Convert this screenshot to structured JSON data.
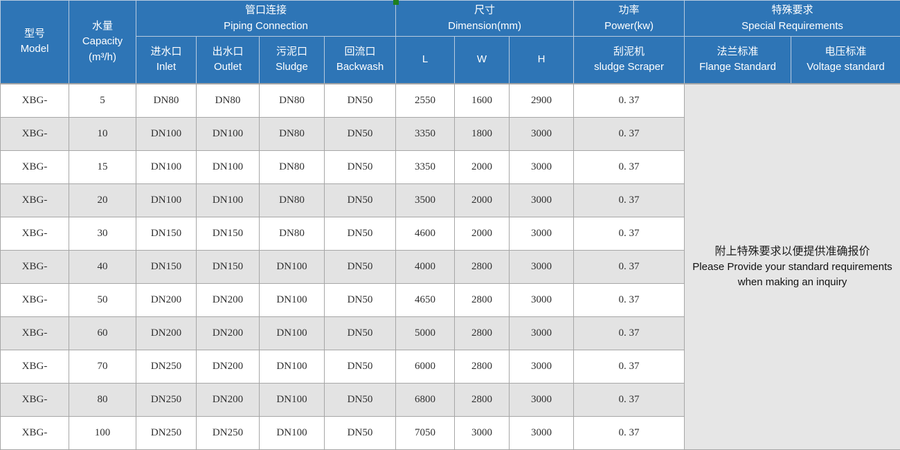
{
  "colors": {
    "header_bg": "#2e75b6",
    "header_text": "#ffffff",
    "header_divider": "#b9cbdf",
    "border": "#a6a6a6",
    "alt_row_bg": "#e3e3e3",
    "note_bg": "#e6e6e6",
    "data_text": "#303030",
    "marker_green": "#1e7e1e"
  },
  "header": {
    "model": {
      "zh": "型号",
      "en": "Model"
    },
    "capacity": {
      "zh": "水量",
      "en": "Capacity",
      "unit": "(m³/h)"
    },
    "piping": {
      "zh": "管口连接",
      "en": "Piping Connection"
    },
    "dimension": {
      "zh": "尺寸",
      "en": "Dimension(mm)"
    },
    "power": {
      "zh": "功率",
      "en": "Power(kw)"
    },
    "special": {
      "zh": "特殊要求",
      "en": "Special Requirements"
    },
    "inlet": {
      "zh": "进水口",
      "en": "Inlet"
    },
    "outlet": {
      "zh": "出水口",
      "en": "Outlet"
    },
    "sludge": {
      "zh": "污泥口",
      "en": "Sludge"
    },
    "backwash": {
      "zh": "回流口",
      "en": "Backwash"
    },
    "dim_l": "L",
    "dim_w": "W",
    "dim_h": "H",
    "scraper": {
      "zh": "刮泥机",
      "en": "sludge Scraper"
    },
    "flange": {
      "zh": "法兰标准",
      "en": "Flange Standard"
    },
    "voltage": {
      "zh": "电压标准",
      "en": "Voltage standard"
    }
  },
  "rows": [
    {
      "model": "XBG-",
      "capacity": "5",
      "inlet": "DN80",
      "outlet": "DN80",
      "sludge": "DN80",
      "backwash": "DN50",
      "l": "2550",
      "w": "1600",
      "h": "2900",
      "power": "0. 37"
    },
    {
      "model": "XBG-",
      "capacity": "10",
      "inlet": "DN100",
      "outlet": "DN100",
      "sludge": "DN80",
      "backwash": "DN50",
      "l": "3350",
      "w": "1800",
      "h": "3000",
      "power": "0. 37"
    },
    {
      "model": "XBG-",
      "capacity": "15",
      "inlet": "DN100",
      "outlet": "DN100",
      "sludge": "DN80",
      "backwash": "DN50",
      "l": "3350",
      "w": "2000",
      "h": "3000",
      "power": "0. 37"
    },
    {
      "model": "XBG-",
      "capacity": "20",
      "inlet": "DN100",
      "outlet": "DN100",
      "sludge": "DN80",
      "backwash": "DN50",
      "l": "3500",
      "w": "2000",
      "h": "3000",
      "power": "0. 37"
    },
    {
      "model": "XBG-",
      "capacity": "30",
      "inlet": "DN150",
      "outlet": "DN150",
      "sludge": "DN80",
      "backwash": "DN50",
      "l": "4600",
      "w": "2000",
      "h": "3000",
      "power": "0. 37"
    },
    {
      "model": "XBG-",
      "capacity": "40",
      "inlet": "DN150",
      "outlet": "DN150",
      "sludge": "DN100",
      "backwash": "DN50",
      "l": "4000",
      "w": "2800",
      "h": "3000",
      "power": "0. 37"
    },
    {
      "model": "XBG-",
      "capacity": "50",
      "inlet": "DN200",
      "outlet": "DN200",
      "sludge": "DN100",
      "backwash": "DN50",
      "l": "4650",
      "w": "2800",
      "h": "3000",
      "power": "0. 37"
    },
    {
      "model": "XBG-",
      "capacity": "60",
      "inlet": "DN200",
      "outlet": "DN200",
      "sludge": "DN100",
      "backwash": "DN50",
      "l": "5000",
      "w": "2800",
      "h": "3000",
      "power": "0. 37"
    },
    {
      "model": "XBG-",
      "capacity": "70",
      "inlet": "DN250",
      "outlet": "DN200",
      "sludge": "DN100",
      "backwash": "DN50",
      "l": "6000",
      "w": "2800",
      "h": "3000",
      "power": "0. 37"
    },
    {
      "model": "XBG-",
      "capacity": "80",
      "inlet": "DN250",
      "outlet": "DN200",
      "sludge": "DN100",
      "backwash": "DN50",
      "l": "6800",
      "w": "2800",
      "h": "3000",
      "power": "0. 37"
    },
    {
      "model": "XBG-",
      "capacity": "100",
      "inlet": "DN250",
      "outlet": "DN250",
      "sludge": "DN100",
      "backwash": "DN50",
      "l": "7050",
      "w": "3000",
      "h": "3000",
      "power": "0. 37"
    }
  ],
  "note": {
    "zh": "附上特殊要求以便提供准确报价",
    "en1": "Please Provide your standard requirements",
    "en2": "when making an inquiry"
  }
}
